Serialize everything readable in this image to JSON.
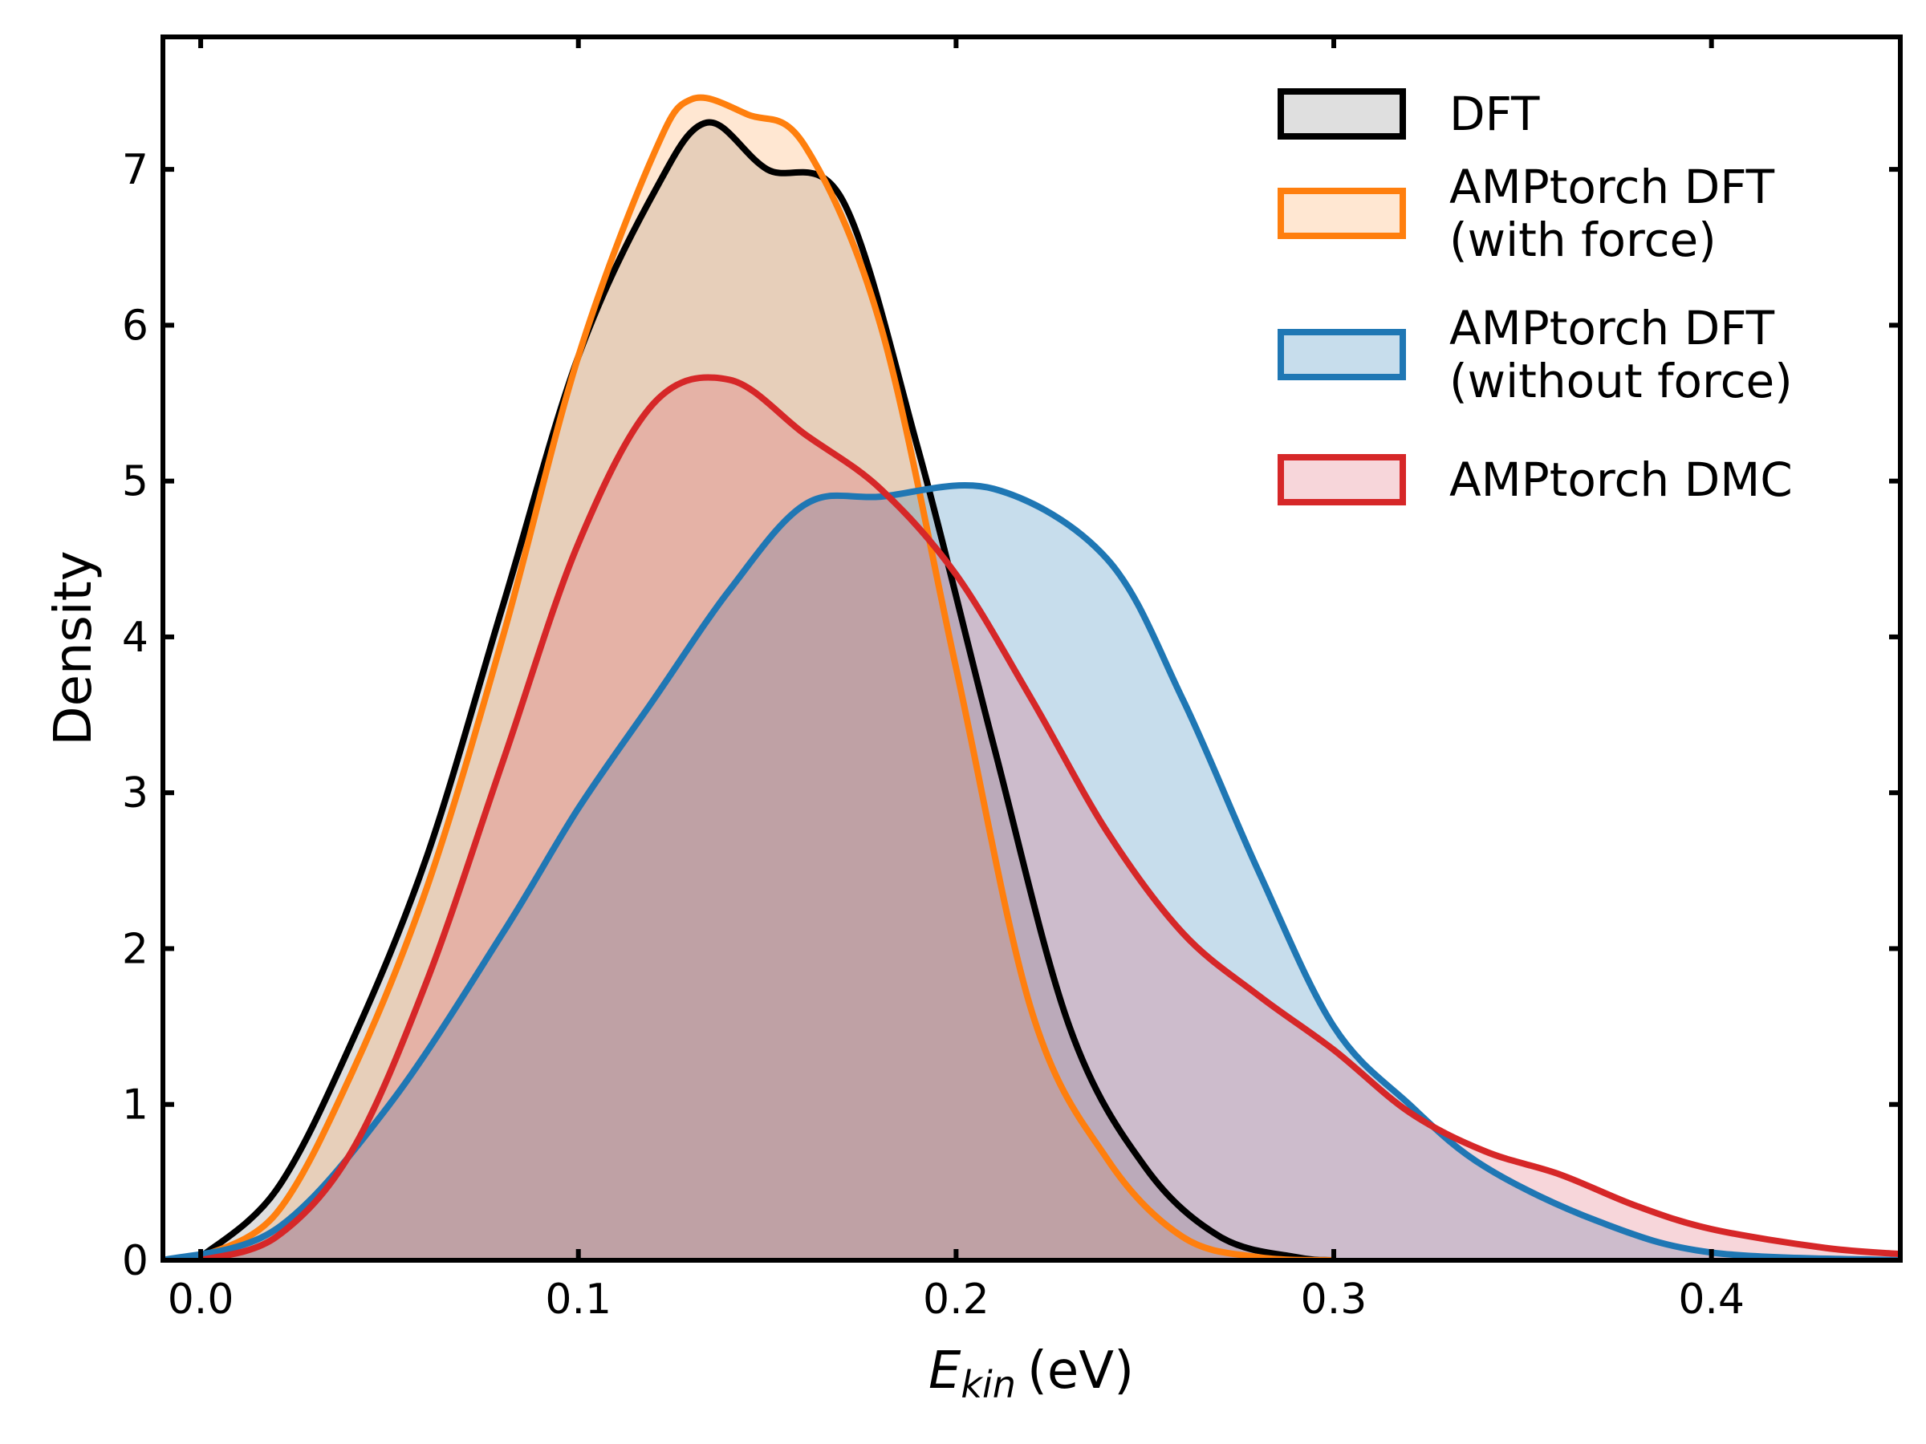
{
  "chart_data": {
    "type": "area",
    "xlabel": {
      "main": "E",
      "sub": "kin",
      "unit": "(eV)"
    },
    "ylabel": "Density",
    "xlim": [
      -0.01,
      0.45
    ],
    "ylim": [
      0,
      7.85
    ],
    "x_ticks": [
      0.0,
      0.1,
      0.2,
      0.3,
      0.4
    ],
    "x_tick_labels": [
      "0.0",
      "0.1",
      "0.2",
      "0.3",
      "0.4"
    ],
    "y_ticks": [
      0,
      1,
      2,
      3,
      4,
      5,
      6,
      7
    ],
    "y_tick_labels": [
      "0",
      "1",
      "2",
      "3",
      "4",
      "5",
      "6",
      "7"
    ],
    "grid": false,
    "legend_position": "top-right",
    "series": [
      {
        "name": "DFT",
        "label_lines": [
          "DFT"
        ],
        "stroke": "#000000",
        "fill": "#7f7f7f",
        "x": [
          0.0,
          0.02,
          0.04,
          0.06,
          0.08,
          0.1,
          0.12,
          0.134,
          0.15,
          0.17,
          0.19,
          0.21,
          0.23,
          0.25,
          0.27,
          0.29,
          0.3
        ],
        "y": [
          0.02,
          0.45,
          1.4,
          2.6,
          4.2,
          5.8,
          6.85,
          7.3,
          7.0,
          6.8,
          5.2,
          3.3,
          1.5,
          0.6,
          0.15,
          0.02,
          0.0
        ]
      },
      {
        "name": "AMPtorch DFT (with force)",
        "label_lines": [
          "AMPtorch DFT",
          "(with force)"
        ],
        "stroke": "#ff7f0e",
        "fill": "#ff9f4a",
        "x": [
          0.0,
          0.02,
          0.04,
          0.06,
          0.08,
          0.1,
          0.12,
          0.13,
          0.145,
          0.16,
          0.18,
          0.2,
          0.22,
          0.24,
          0.26,
          0.28,
          0.3
        ],
        "y": [
          0.02,
          0.3,
          1.2,
          2.4,
          4.0,
          5.8,
          7.1,
          7.45,
          7.35,
          7.15,
          6.0,
          3.8,
          1.6,
          0.65,
          0.15,
          0.02,
          0.0
        ]
      },
      {
        "name": "AMPtorch DFT (without force)",
        "label_lines": [
          "AMPtorch DFT",
          "(without force)"
        ],
        "stroke": "#1f77b4",
        "fill": "#1f77b4",
        "x": [
          -0.01,
          0.02,
          0.05,
          0.08,
          0.1,
          0.12,
          0.14,
          0.16,
          0.18,
          0.21,
          0.24,
          0.26,
          0.28,
          0.3,
          0.32,
          0.34,
          0.37,
          0.4,
          0.45
        ],
        "y": [
          0.0,
          0.2,
          1.0,
          2.1,
          2.9,
          3.6,
          4.3,
          4.85,
          4.9,
          4.95,
          4.5,
          3.6,
          2.5,
          1.5,
          1.0,
          0.6,
          0.25,
          0.05,
          0.0
        ]
      },
      {
        "name": "AMPtorch DMC",
        "label_lines": [
          "AMPtorch DMC"
        ],
        "stroke": "#d62728",
        "fill": "#e15d6a",
        "x": [
          0.0,
          0.02,
          0.04,
          0.06,
          0.08,
          0.1,
          0.12,
          0.14,
          0.16,
          0.18,
          0.2,
          0.22,
          0.24,
          0.26,
          0.28,
          0.3,
          0.32,
          0.34,
          0.36,
          0.38,
          0.4,
          0.43,
          0.45
        ],
        "y": [
          0.0,
          0.15,
          0.7,
          1.8,
          3.2,
          4.6,
          5.5,
          5.65,
          5.3,
          4.95,
          4.4,
          3.6,
          2.75,
          2.1,
          1.7,
          1.35,
          0.95,
          0.7,
          0.55,
          0.35,
          0.2,
          0.08,
          0.04
        ]
      }
    ]
  }
}
